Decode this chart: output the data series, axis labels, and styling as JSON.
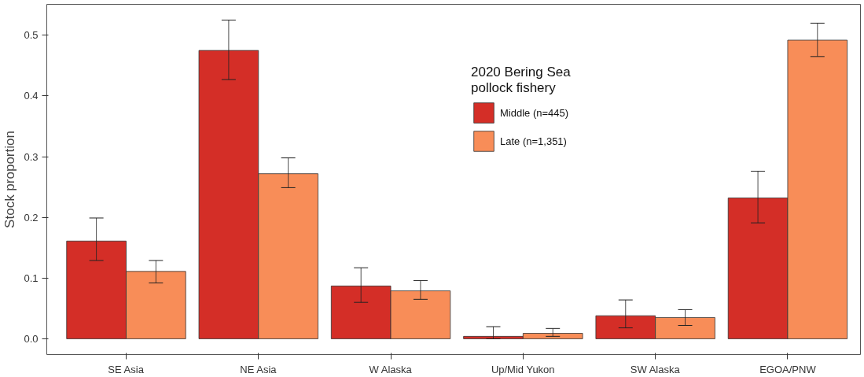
{
  "chart_data": {
    "type": "bar",
    "ylabel": "Stock proportion",
    "legend_title": "2020 Bering Sea\npollock fishery",
    "categories": [
      "SE Asia",
      "NE Asia",
      "W Alaska",
      "Up/Mid Yukon",
      "SW Alaska",
      "EGOA/PNW"
    ],
    "series": [
      {
        "name": "Middle (n=445)",
        "color": "#d42e27",
        "values": [
          0.161,
          0.475,
          0.087,
          0.004,
          0.038,
          0.232
        ],
        "errors": [
          [
            0.129,
            0.199
          ],
          [
            0.427,
            0.525
          ],
          [
            0.06,
            0.117
          ],
          [
            0.0,
            0.02
          ],
          [
            0.018,
            0.064
          ],
          [
            0.191,
            0.276
          ]
        ]
      },
      {
        "name": "Late (n=1,351)",
        "color": "#f88d58",
        "values": [
          0.111,
          0.272,
          0.079,
          0.009,
          0.035,
          0.492
        ],
        "errors": [
          [
            0.092,
            0.129
          ],
          [
            0.249,
            0.298
          ],
          [
            0.065,
            0.096
          ],
          [
            0.004,
            0.017
          ],
          [
            0.022,
            0.048
          ],
          [
            0.465,
            0.52
          ]
        ]
      }
    ],
    "ylim": [
      -0.026,
      0.551
    ],
    "yticks": [
      {
        "value": 0,
        "label": "0.0"
      },
      0.1,
      0.2,
      0.3,
      0.4,
      0.5
    ],
    "grid": false,
    "legend": "top"
  }
}
